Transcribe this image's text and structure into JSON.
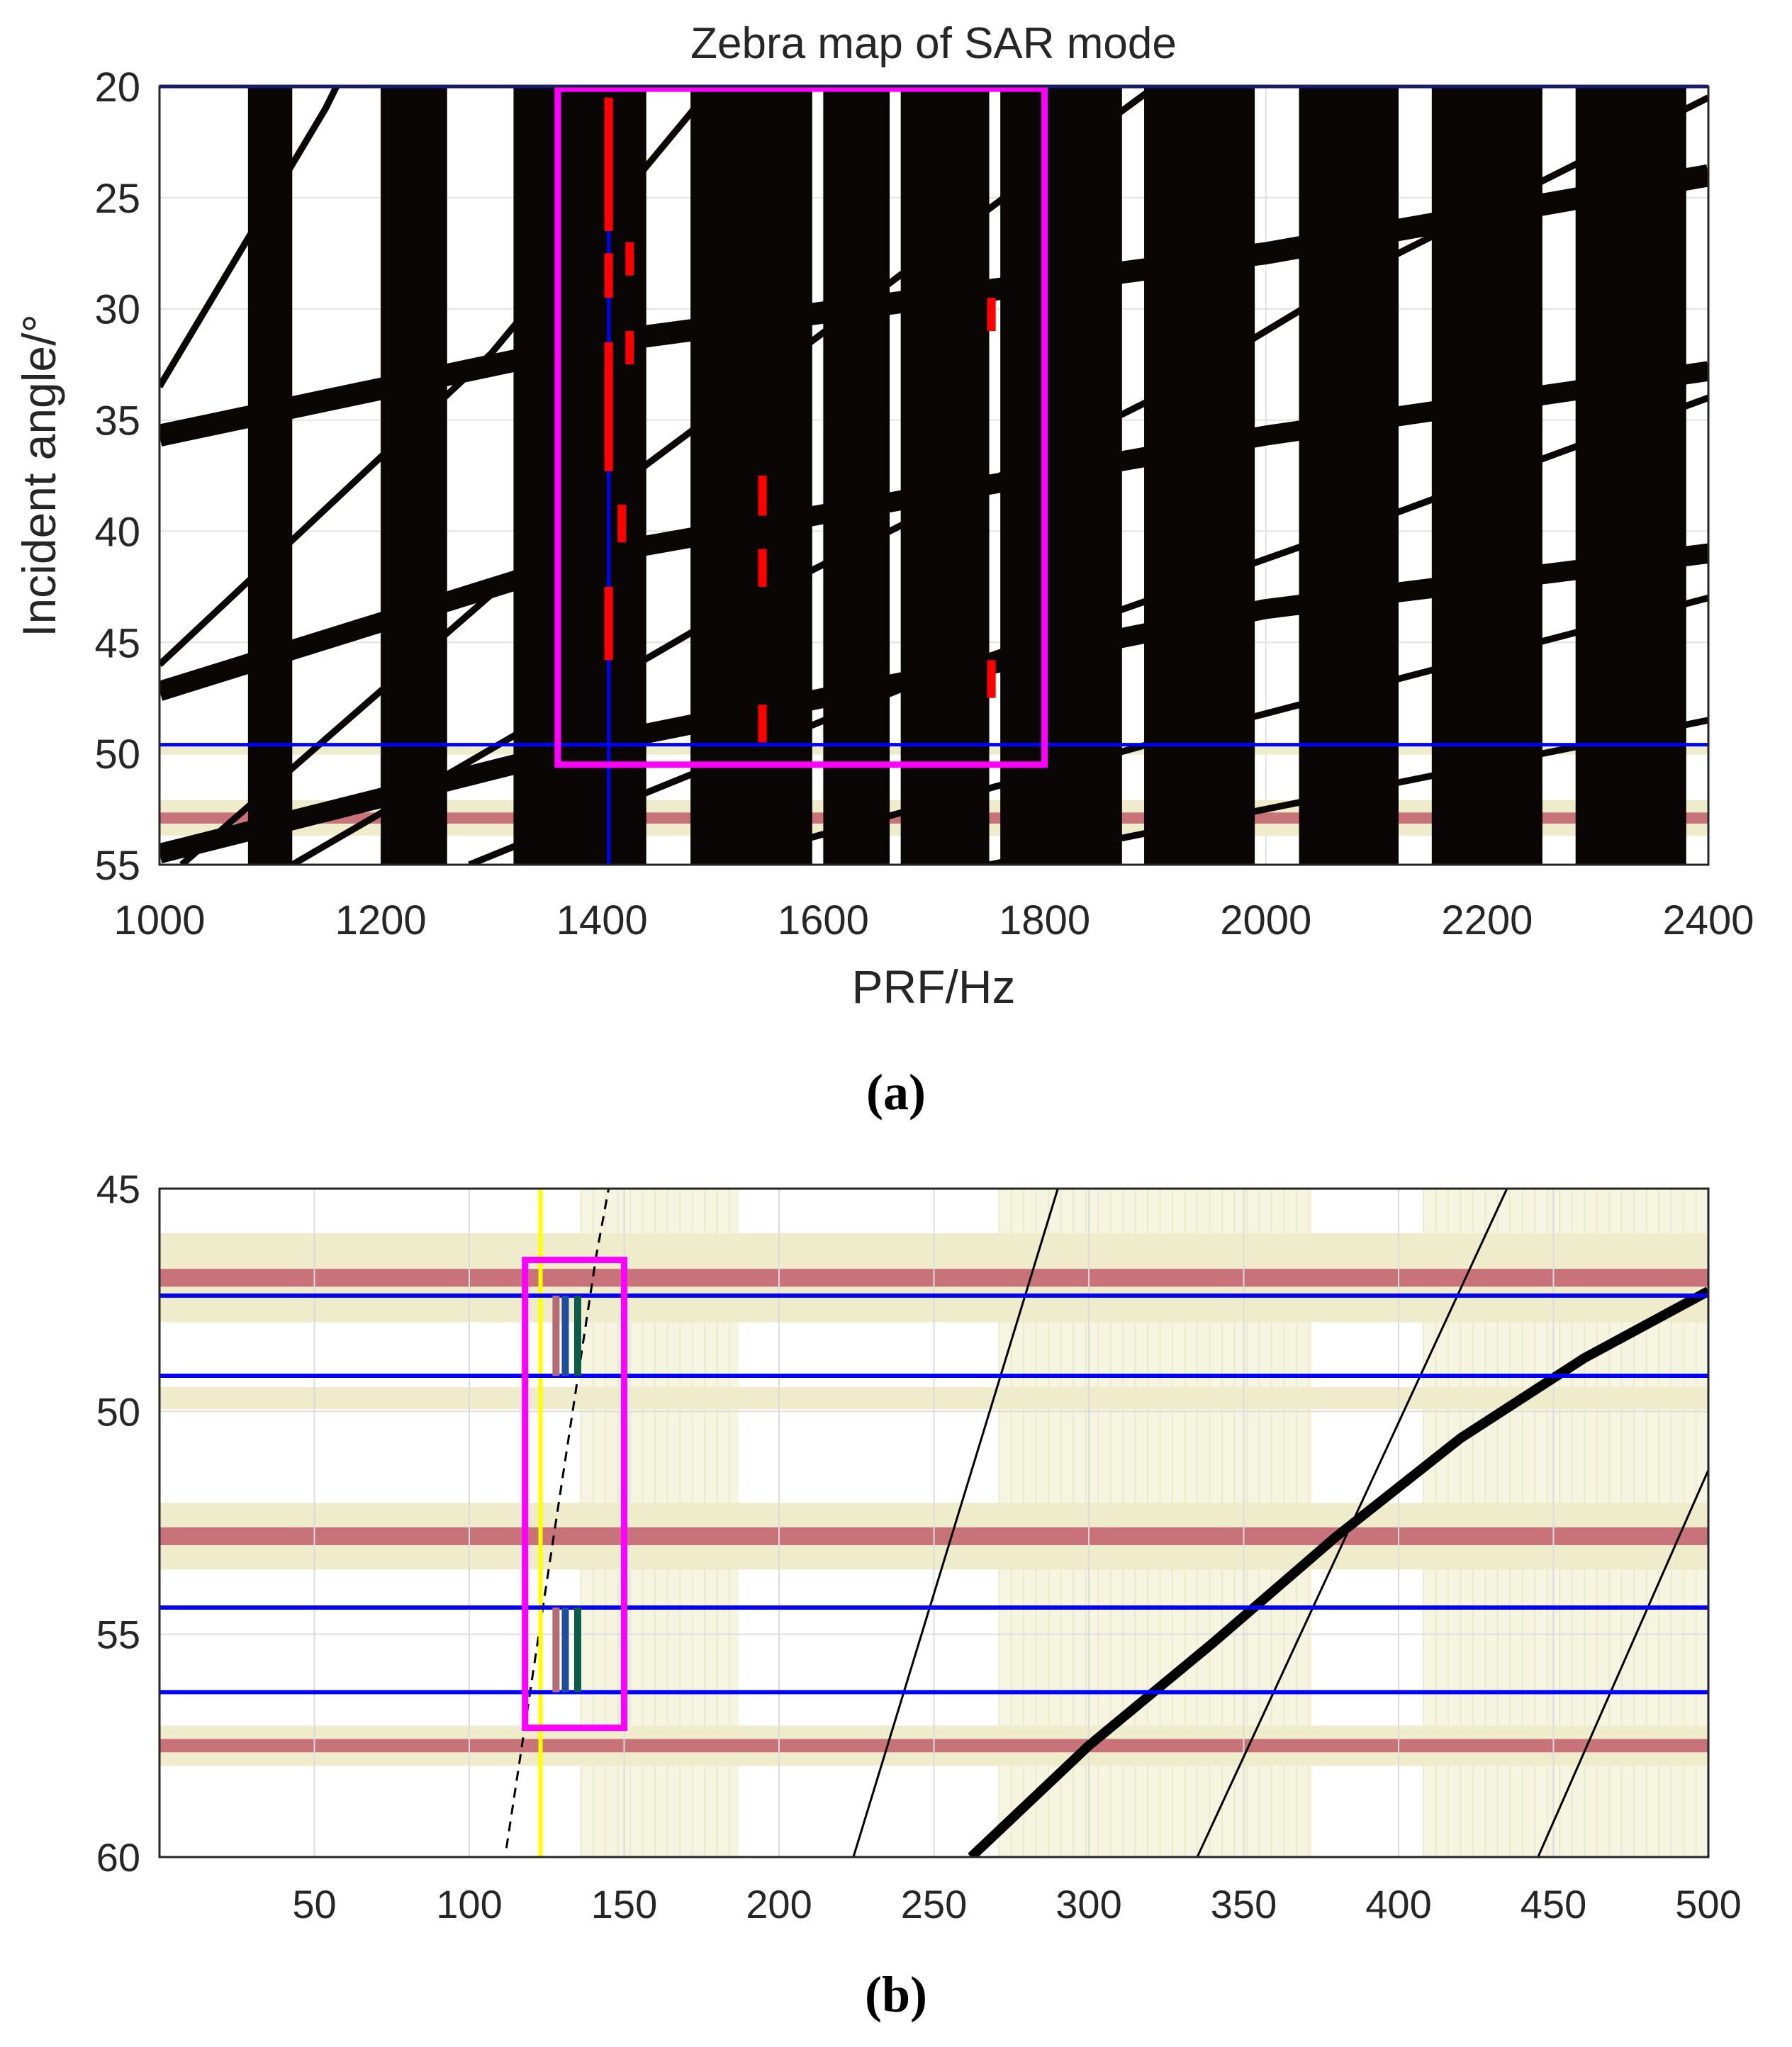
{
  "chart_data": [
    {
      "type": "heatmap",
      "panel_label": "(a)",
      "title": "Zebra map of SAR mode",
      "xlabel": "PRF/Hz",
      "ylabel": "Incident angle/°",
      "xlim": [
        1000,
        2400
      ],
      "ylim": [
        20,
        55
      ],
      "y_reversed": true,
      "x_ticks": [
        "1000",
        "1200",
        "1400",
        "1600",
        "1800",
        "2000",
        "2200",
        "2400"
      ],
      "y_ticks": [
        "20",
        "25",
        "30",
        "35",
        "40",
        "45",
        "50",
        "55"
      ],
      "grid": true,
      "colors": {
        "blocked": "#0a0606",
        "selection_box": "#ff00ff",
        "boundary": "#0000ff",
        "candidate": "#ff0000",
        "nadir_band": "#c8727a",
        "nadir_halo": "#efeccb"
      },
      "nadir_blocked_bands": [
        {
          "name": "nadir-echo-band-1",
          "x_range": [
            1080,
            1120
          ]
        },
        {
          "name": "nadir-echo-band-2",
          "x_range": [
            1200,
            1260
          ]
        },
        {
          "name": "nadir-echo-band-3",
          "x_range": [
            1320,
            1440
          ]
        },
        {
          "name": "nadir-echo-band-4",
          "x_range": [
            1480,
            1590
          ]
        },
        {
          "name": "nadir-echo-band-5",
          "x_range": [
            1600,
            1660
          ]
        },
        {
          "name": "nadir-echo-band-6",
          "x_range": [
            1670,
            1750
          ]
        },
        {
          "name": "nadir-echo-band-7",
          "x_range": [
            1760,
            1870
          ]
        },
        {
          "name": "nadir-echo-band-8",
          "x_range": [
            1890,
            1990
          ]
        },
        {
          "name": "nadir-echo-band-9",
          "x_range": [
            2030,
            2120
          ]
        },
        {
          "name": "nadir-echo-band-10",
          "x_range": [
            2150,
            2250
          ]
        },
        {
          "name": "nadir-echo-band-11",
          "x_range": [
            2280,
            2380
          ]
        }
      ],
      "transmit_interference_curves": [
        {
          "name": "thick-curve-1",
          "points": [
            [
              1000,
              35.7
            ],
            [
              1400,
              31.5
            ],
            [
              2000,
              27.5
            ],
            [
              2400,
              24
            ]
          ],
          "width": 1.0
        },
        {
          "name": "thick-curve-2",
          "points": [
            [
              1000,
              47.2
            ],
            [
              1400,
              41.0
            ],
            [
              2000,
              35.7
            ],
            [
              2400,
              32.8
            ]
          ],
          "width": 0.9
        },
        {
          "name": "thick-curve-3",
          "points": [
            [
              1000,
              54.5
            ],
            [
              1400,
              49.5
            ],
            [
              2000,
              43.5
            ],
            [
              2400,
              41.0
            ]
          ],
          "width": 0.9
        },
        {
          "name": "thin-curve-1",
          "points": [
            [
              1000,
              33.5
            ],
            [
              1150,
              21.0
            ],
            [
              1160,
              20
            ]
          ],
          "width": 0.3
        },
        {
          "name": "thin-curve-2",
          "points": [
            [
              1000,
              46.0
            ],
            [
              1300,
              32.0
            ],
            [
              1500,
              20.0
            ]
          ],
          "width": 0.3
        },
        {
          "name": "thin-curve-3",
          "points": [
            [
              1020,
              55.0
            ],
            [
              1400,
              38.5
            ],
            [
              1750,
              25.5
            ],
            [
              1900,
              20.0
            ]
          ],
          "width": 0.3
        },
        {
          "name": "thin-curve-4",
          "points": [
            [
              1120,
              55.0
            ],
            [
              1500,
              44.0
            ],
            [
              1900,
              34.0
            ],
            [
              2100,
              28.0
            ],
            [
              2400,
              20.5
            ]
          ],
          "width": 0.3
        },
        {
          "name": "thin-curve-5",
          "points": [
            [
              1280,
              55.0
            ],
            [
              1700,
              46.5
            ],
            [
              2100,
              39.5
            ],
            [
              2400,
              34.0
            ]
          ],
          "width": 0.3
        },
        {
          "name": "thin-curve-6",
          "points": [
            [
              1500,
              55.0
            ],
            [
              1900,
              49.5
            ],
            [
              2400,
              43.0
            ]
          ],
          "width": 0.3
        },
        {
          "name": "thin-curve-7",
          "points": [
            [
              1750,
              55.0
            ],
            [
              2100,
              51.5
            ],
            [
              2400,
              48.5
            ]
          ],
          "width": 0.3
        }
      ],
      "selection_box": {
        "x_range": [
          1360,
          1800
        ],
        "y_range": [
          20.1,
          50.5
        ]
      },
      "boundary_lines": [
        {
          "name": "upper-angle-line",
          "axis": "y",
          "value": 20.0
        },
        {
          "name": "lower-angle-line",
          "axis": "y",
          "value": 49.6
        },
        {
          "name": "selected-prf-line",
          "axis": "x",
          "value": 1406,
          "y_range": [
            26.5,
            55
          ]
        }
      ],
      "candidate_segments": [
        {
          "x": 1406,
          "y_range": [
            20.5,
            26.5
          ]
        },
        {
          "x": 1406,
          "y_range": [
            27.5,
            29.5
          ]
        },
        {
          "x": 1406,
          "y_range": [
            31.5,
            37.3
          ]
        },
        {
          "x": 1406,
          "y_range": [
            42.5,
            45.8
          ]
        },
        {
          "x": 1418,
          "y_range": [
            38.8,
            40.5
          ]
        },
        {
          "x": 1425,
          "y_range": [
            27.0,
            28.5
          ]
        },
        {
          "x": 1425,
          "y_range": [
            31.0,
            32.5
          ]
        },
        {
          "x": 1545,
          "y_range": [
            37.5,
            39.3
          ]
        },
        {
          "x": 1545,
          "y_range": [
            40.8,
            42.5
          ]
        },
        {
          "x": 1545,
          "y_range": [
            47.8,
            49.5
          ]
        },
        {
          "x": 1752,
          "y_range": [
            29.5,
            31.0
          ]
        },
        {
          "x": 1752,
          "y_range": [
            45.8,
            47.5
          ]
        }
      ],
      "nadir_angle_bands": [
        {
          "center": 52.9,
          "core_half_width": 0.25,
          "halo_half_width": 0.8
        },
        {
          "center": 49.8,
          "core_half_width": 0.0,
          "halo_half_width": 0.25
        }
      ]
    },
    {
      "type": "heatmap",
      "panel_label": "(b)",
      "title": "",
      "xlabel": "",
      "ylabel": "",
      "xlim": [
        0,
        500
      ],
      "ylim": [
        45,
        60
      ],
      "y_reversed": true,
      "x_ticks": [
        "50",
        "100",
        "150",
        "200",
        "250",
        "300",
        "350",
        "400",
        "450",
        "500"
      ],
      "y_ticks": [
        "45",
        "50",
        "55",
        "60"
      ],
      "grid": true,
      "colors": {
        "blocked": "#000000",
        "selection_box": "#ff00ff",
        "boundary": "#0000ff",
        "cursor": "#ffff00",
        "nadir_band": "#c8727a",
        "nadir_halo": "#efeccb",
        "marker_a": "#b56b73",
        "marker_b": "#1f4e9c",
        "marker_c": "#0d5c48"
      },
      "nadir_bands": [
        {
          "center": 47.0,
          "core_half_width": 0.2,
          "halo_half_width": 1.0
        },
        {
          "center": 49.7,
          "core_half_width": 0.0,
          "halo_half_width": 0.25
        },
        {
          "center": 52.8,
          "core_half_width": 0.2,
          "halo_half_width": 0.75
        },
        {
          "center": 57.5,
          "core_half_width": 0.15,
          "halo_half_width": 0.45
        }
      ],
      "prf_shaded_ranges": [
        [
          136,
          187
        ],
        [
          271,
          372
        ],
        [
          408,
          500
        ]
      ],
      "boundary_lines": [
        {
          "name": "line-47.4",
          "axis": "y",
          "value": 47.4
        },
        {
          "name": "line-49.2",
          "axis": "y",
          "value": 49.2
        },
        {
          "name": "line-54.4",
          "axis": "y",
          "value": 54.4
        },
        {
          "name": "line-56.3",
          "axis": "y",
          "value": 56.3
        }
      ],
      "cursor_line": {
        "axis": "x",
        "value": 123
      },
      "selection_box": {
        "x_range": [
          118,
          150
        ],
        "y_range": [
          46.6,
          57.1
        ]
      },
      "selected_markers": [
        {
          "x": 128,
          "y_range": [
            47.4,
            49.2
          ],
          "color": "marker_a"
        },
        {
          "x": 131,
          "y_range": [
            47.4,
            49.2
          ],
          "color": "marker_b"
        },
        {
          "x": 135,
          "y_range": [
            47.4,
            49.2
          ],
          "color": "marker_c"
        },
        {
          "x": 128,
          "y_range": [
            54.4,
            56.3
          ],
          "color": "marker_a"
        },
        {
          "x": 131,
          "y_range": [
            54.4,
            56.3
          ],
          "color": "marker_b"
        },
        {
          "x": 135,
          "y_range": [
            54.4,
            56.3
          ],
          "color": "marker_c"
        }
      ],
      "dashed_curve": {
        "points": [
          [
            112,
            59.8
          ],
          [
            141,
            46.5
          ],
          [
            145,
            45.0
          ]
        ]
      },
      "interference_curves": [
        {
          "name": "thin-line-1",
          "points": [
            [
              224,
              60
            ],
            [
              290,
              45
            ]
          ],
          "width": 0.03
        },
        {
          "name": "thin-line-2",
          "points": [
            [
              335,
              60
            ],
            [
              435,
              45
            ]
          ],
          "width": 0.03
        },
        {
          "name": "thin-line-3",
          "points": [
            [
              445,
              60
            ],
            [
              502,
              51.0
            ]
          ],
          "width": 0.03
        },
        {
          "name": "thick-curve",
          "points": [
            [
              262,
              60
            ],
            [
              300,
              57.5
            ],
            [
              340,
              55.2
            ],
            [
              380,
              52.8
            ],
            [
              420,
              50.6
            ],
            [
              460,
              48.8
            ],
            [
              500,
              47.3
            ]
          ],
          "width": 0.22
        }
      ]
    }
  ]
}
